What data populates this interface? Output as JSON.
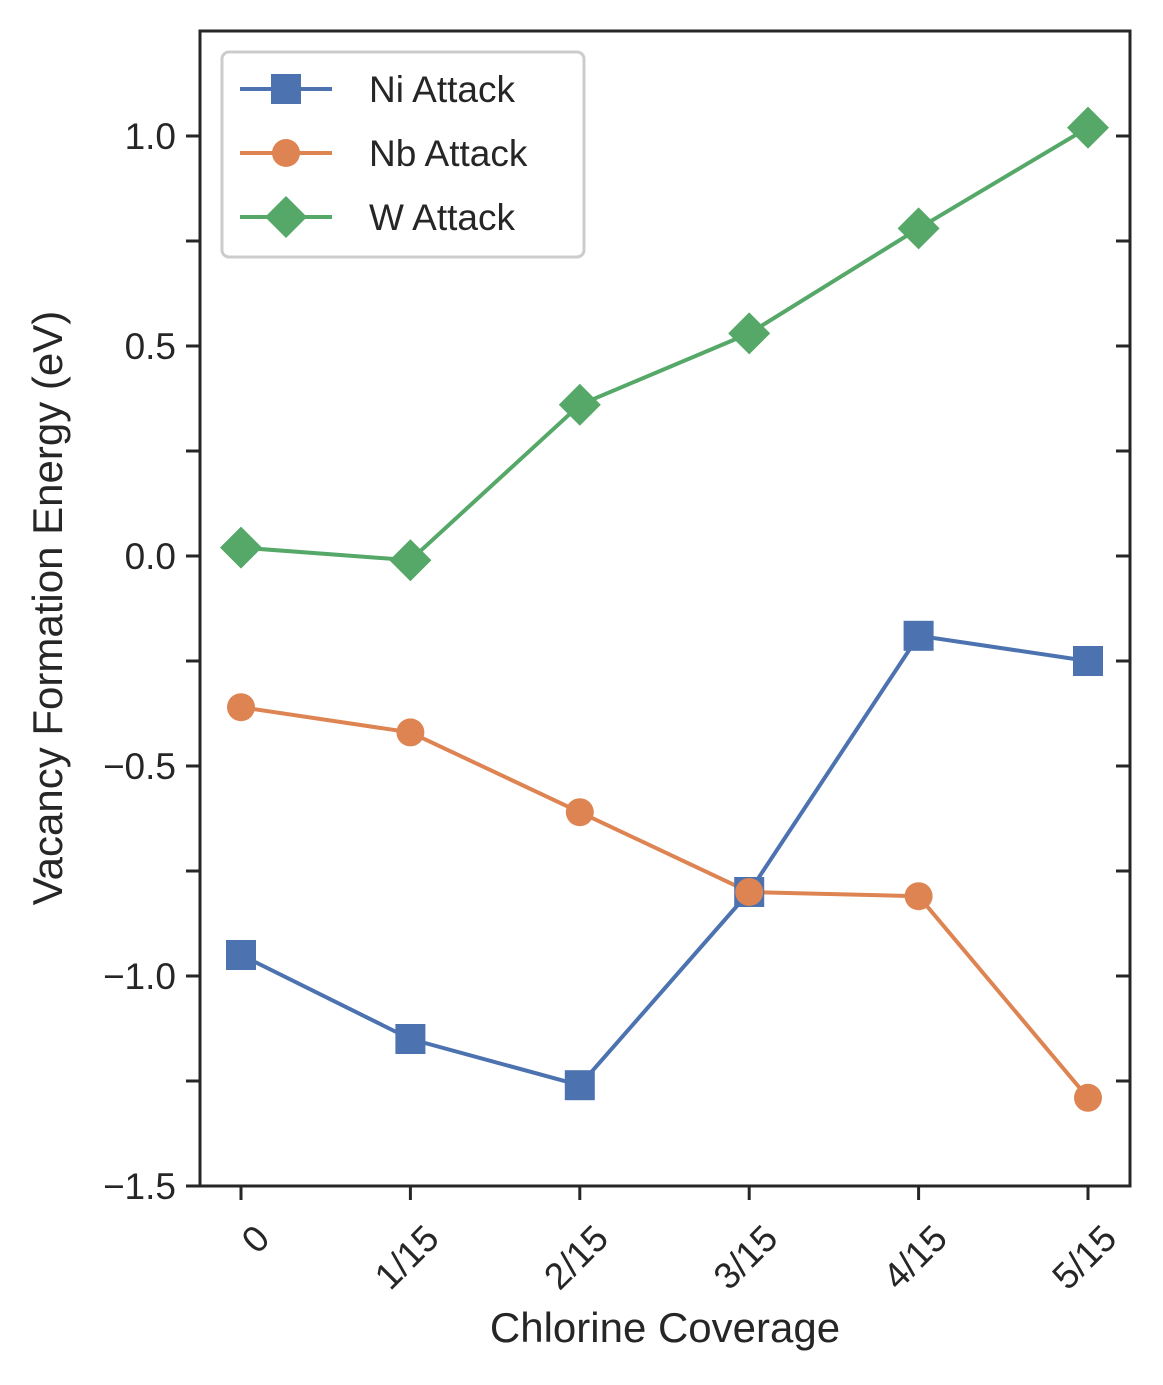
{
  "chart_data": {
    "type": "line",
    "xlabel": "Chlorine Coverage",
    "ylabel": "Vacancy Formation Energy (eV)",
    "categories": [
      "0",
      "1/15",
      "2/15",
      "3/15",
      "4/15",
      "5/15"
    ],
    "ylim": [
      -1.5,
      1.25
    ],
    "yticks": [
      -1.5,
      -1.25,
      -1.0,
      -0.75,
      -0.5,
      -0.25,
      0.0,
      0.25,
      0.5,
      0.75,
      1.0
    ],
    "ytick_labels": [
      "−1.5",
      "",
      "−1.0",
      "",
      "−0.5",
      "",
      "0.0",
      "",
      "0.5",
      "",
      "1.0"
    ],
    "legend_position": "top-left",
    "grid": false,
    "series": [
      {
        "name": "Ni Attack",
        "marker": "square",
        "color": "#4c72b0",
        "values": [
          -0.95,
          -1.15,
          -1.26,
          -0.8,
          -0.19,
          -0.25
        ]
      },
      {
        "name": "Nb Attack",
        "marker": "circle",
        "color": "#dd8452",
        "values": [
          -0.36,
          -0.42,
          -0.61,
          -0.8,
          -0.81,
          -1.29
        ]
      },
      {
        "name": "W Attack",
        "marker": "diamond",
        "color": "#55a868",
        "values": [
          0.02,
          -0.01,
          0.36,
          0.53,
          0.78,
          1.02
        ]
      }
    ]
  }
}
